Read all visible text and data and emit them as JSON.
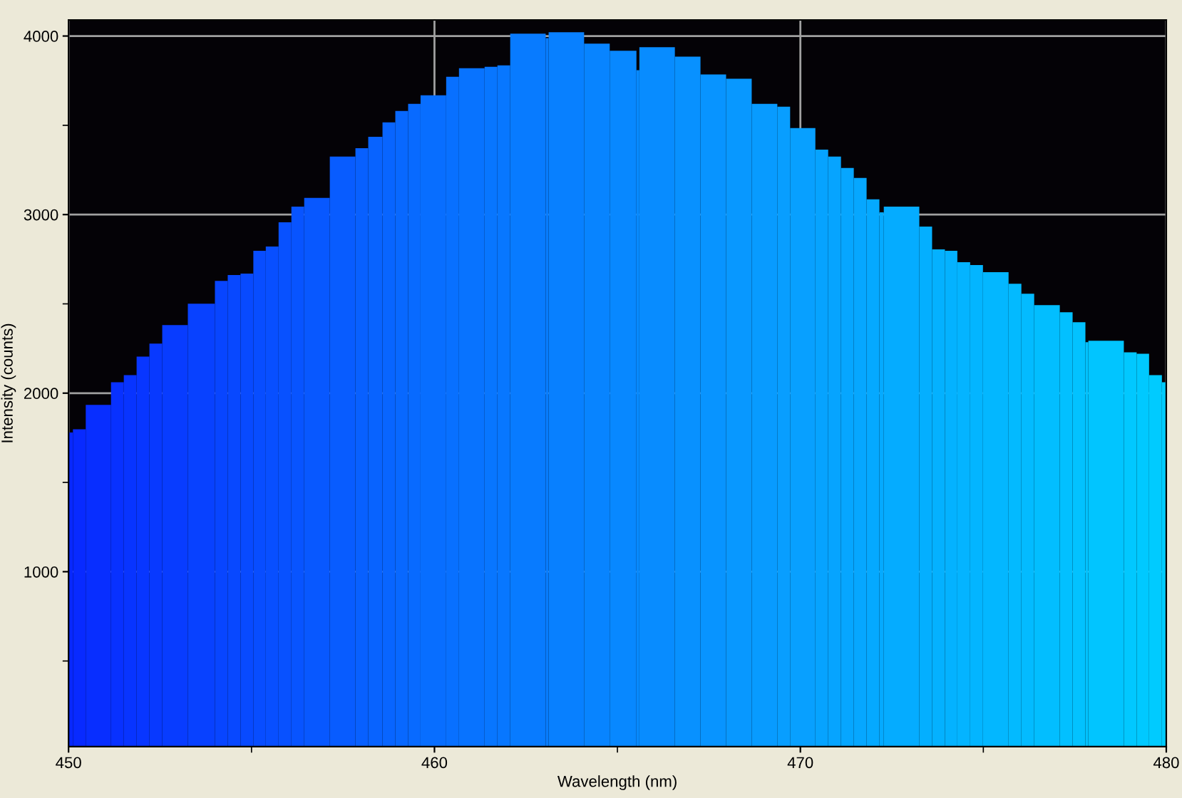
{
  "chart_data": {
    "type": "histogram",
    "xlabel": "Wavelength (nm)",
    "ylabel": "Intensity (counts)",
    "bins": [
      450.0,
      450.12,
      450.47,
      451.16,
      451.51,
      451.86,
      452.21,
      452.56,
      453.26,
      454.0,
      454.35,
      454.7,
      455.05,
      455.39,
      455.74,
      456.09,
      456.44,
      457.14,
      457.84,
      458.19,
      458.58,
      458.93,
      459.28,
      459.62,
      460.32,
      460.67,
      461.37,
      461.72,
      462.07,
      463.04,
      463.12,
      464.09,
      464.79,
      465.52,
      465.6,
      466.57,
      467.27,
      467.97,
      468.67,
      469.37,
      469.72,
      470.41,
      470.76,
      471.11,
      471.46,
      471.81,
      472.16,
      472.28,
      473.25,
      473.6,
      473.95,
      474.29,
      474.64,
      474.99,
      475.69,
      476.04,
      476.39,
      477.09,
      477.44,
      477.79,
      477.87,
      478.84,
      479.19,
      479.53,
      479.88,
      480.0
    ],
    "values": [
      1780,
      1798,
      1934,
      2061,
      2101,
      2205,
      2277,
      2381,
      2501,
      2629,
      2661,
      2669,
      2797,
      2821,
      2957,
      3045,
      3093,
      3325,
      3372,
      3436,
      3516,
      3580,
      3620,
      3668,
      3772,
      3820,
      3828,
      3836,
      4013,
      3988,
      4021,
      3957,
      3917,
      3809,
      3937,
      3885,
      3785,
      3761,
      3620,
      3604,
      3484,
      3364,
      3325,
      3261,
      3205,
      3085,
      3013,
      3045,
      2933,
      2805,
      2797,
      2733,
      2717,
      2677,
      2613,
      2557,
      2493,
      2453,
      2397,
      2285,
      2293,
      2229,
      2221,
      2101,
      2061
    ],
    "colors": [
      "#0828ff",
      "#082aff",
      "#082eff",
      "#0831ff",
      "#0834ff",
      "#0836ff",
      "#0839ff",
      "#083cff",
      "#0841ff",
      "#0845ff",
      "#0848ff",
      "#084aff",
      "#084dff",
      "#084fff",
      "#0851ff",
      "#0854ff",
      "#0858ff",
      "#085cff",
      "#0860ff",
      "#0863ff",
      "#0865ff",
      "#0868ff",
      "#086aff",
      "#086eff",
      "#0870ff",
      "#0873ff",
      "#0876ff",
      "#0877ff",
      "#087bff",
      "#087dff",
      "#0880ff",
      "#0884ff",
      "#0888ff",
      "#088aff",
      "#088cff",
      "#0891ff",
      "#0894ff",
      "#0898ff",
      "#089bff",
      "#089eff",
      "#08a0ff",
      "#06a3ff",
      "#06a4ff",
      "#06a6ff",
      "#06a7ff",
      "#05a9ff",
      "#05aaff",
      "#05acff",
      "#04afff",
      "#04b1ff",
      "#04b2ff",
      "#04b4ff",
      "#03b5ff",
      "#03b7ff",
      "#03baff",
      "#03bbff",
      "#02beff",
      "#02c0ff",
      "#02c2ff",
      "#02c2ff",
      "#01c5ff",
      "#01c8ff",
      "#00c9ff",
      "#00cbff",
      "#00ccff"
    ],
    "xlim": [
      450,
      480
    ],
    "xticks": [
      450,
      {
        "value": 455,
        "label": null
      },
      460,
      {
        "value": 465,
        "label": null
      },
      470,
      {
        "value": 475,
        "label": null
      },
      480
    ],
    "ylim": [
      20,
      4090
    ],
    "yticks": [
      {
        "value": 500,
        "label": null
      },
      1000,
      {
        "value": 1500,
        "label": null
      },
      2000,
      {
        "value": 2500,
        "label": null
      },
      3000,
      {
        "value": 3500,
        "label": null
      },
      4000
    ],
    "grid": true
  }
}
